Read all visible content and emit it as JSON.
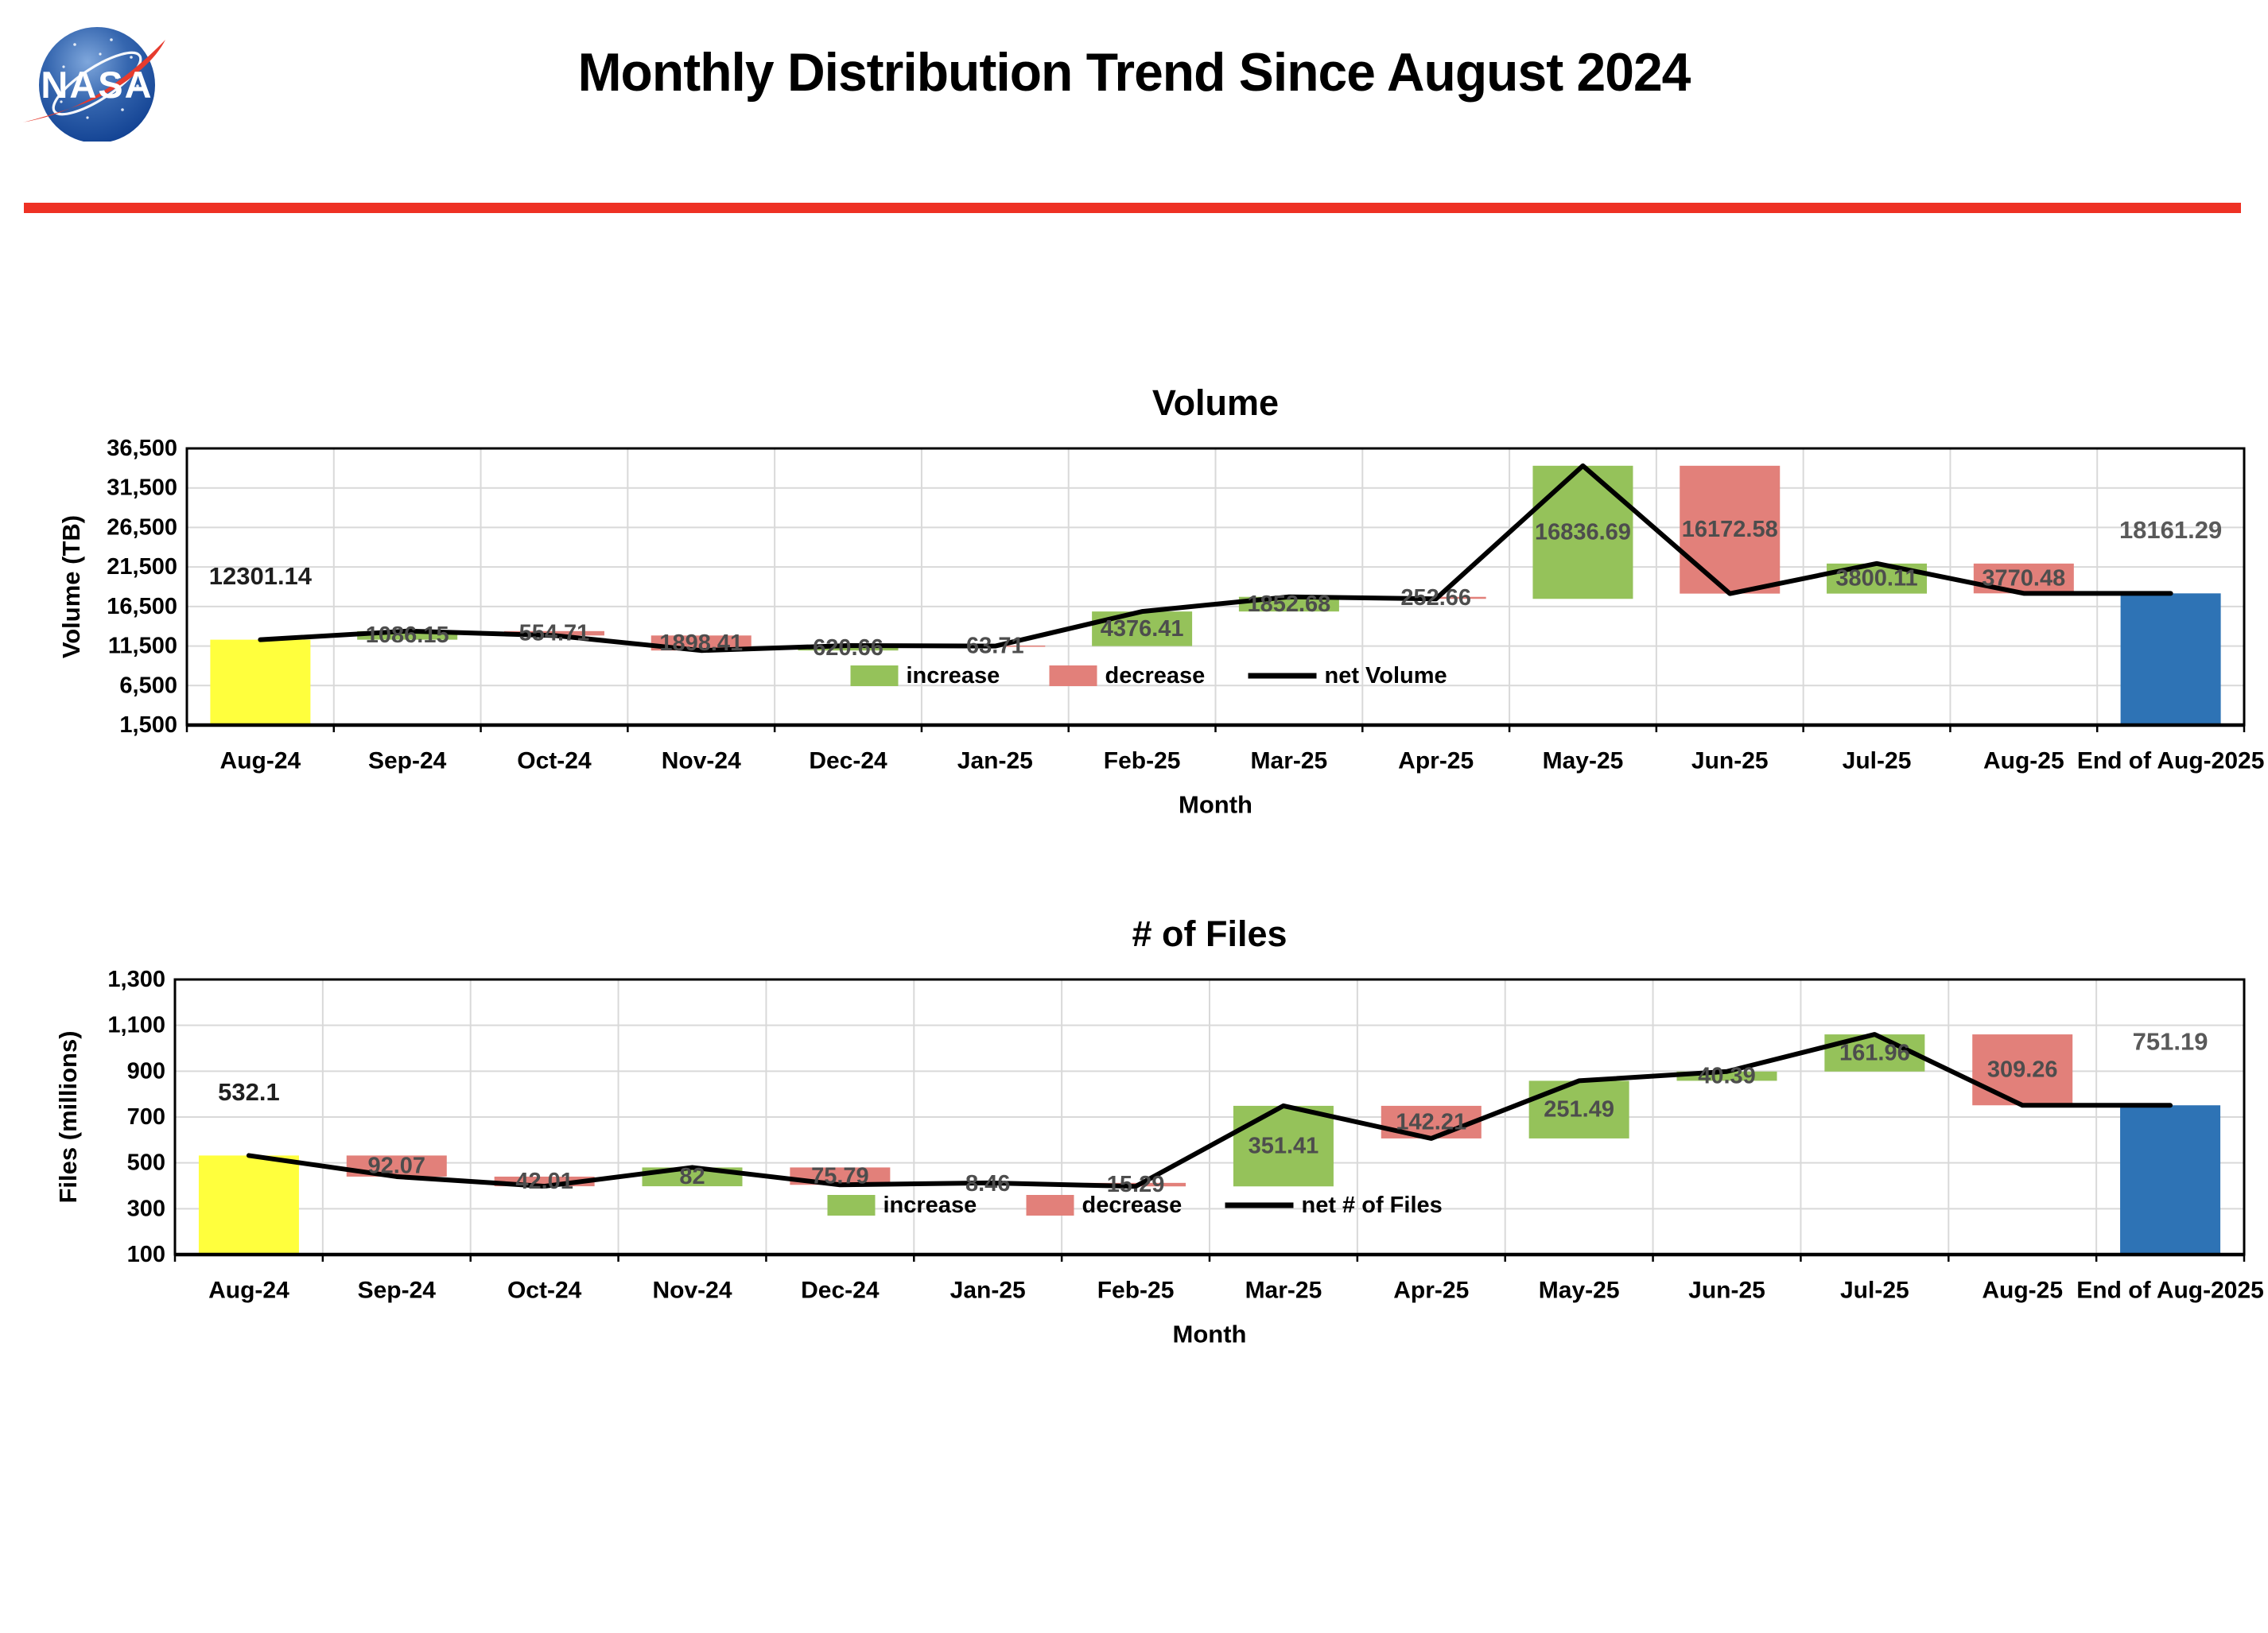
{
  "header": {
    "title": "Monthly Distribution Trend Since August 2024",
    "logo_text": "NASA",
    "divider_color": "#EE3124"
  },
  "palette": {
    "increase": "#95C25A",
    "decrease": "#E2807A",
    "start_bar": "#FFFF3D",
    "end_bar": "#2E73B5",
    "net_line": "#000000",
    "gridline": "#D9D9D9",
    "plot_border": "#000000",
    "change_label": "#4D4D4D",
    "start_label": "#1F1F1F",
    "end_label": "#595959"
  },
  "chart_data": [
    {
      "type": "waterfall-bar-line",
      "title": "Volume",
      "xlabel": "Month",
      "ylabel": "Volume (TB)",
      "ylim": [
        1500,
        36500
      ],
      "ytick_interval": 5000,
      "ytick_labels": [
        "1,500",
        "6,500",
        "11,500",
        "16,500",
        "21,500",
        "26,500",
        "31,500",
        "36,500"
      ],
      "grid": true,
      "legend_position": "inside-bottom-center",
      "categories": [
        "Aug-24",
        "Sep-24",
        "Oct-24",
        "Nov-24",
        "Dec-24",
        "Jan-25",
        "Feb-25",
        "Mar-25",
        "Apr-25",
        "May-25",
        "Jun-25",
        "Jul-25",
        "Aug-25",
        "End of Aug-2025"
      ],
      "legend": [
        {
          "label": "increase",
          "swatch": "increase"
        },
        {
          "label": "decrease",
          "swatch": "decrease"
        },
        {
          "label": "net Volume",
          "swatch": "line"
        }
      ],
      "bars": [
        {
          "category": "Aug-24",
          "role": "start",
          "value": 12301.14,
          "label": "12301.14"
        },
        {
          "category": "Sep-24",
          "role": "increase",
          "value": 1086.15,
          "label": "1086.15"
        },
        {
          "category": "Oct-24",
          "role": "decrease",
          "value": 554.71,
          "label": "554.71"
        },
        {
          "category": "Nov-24",
          "role": "decrease",
          "value": 1898.41,
          "label": "1898.41"
        },
        {
          "category": "Dec-24",
          "role": "increase",
          "value": 620.66,
          "label": "620.66"
        },
        {
          "category": "Jan-25",
          "role": "decrease",
          "value": 63.71,
          "label": "63.71"
        },
        {
          "category": "Feb-25",
          "role": "increase",
          "value": 4376.41,
          "label": "4376.41"
        },
        {
          "category": "Mar-25",
          "role": "increase",
          "value": 1852.68,
          "label": "1852.68"
        },
        {
          "category": "Apr-25",
          "role": "decrease",
          "value": 252.66,
          "label": "252.66"
        },
        {
          "category": "May-25",
          "role": "increase",
          "value": 16836.69,
          "label": "16836.69"
        },
        {
          "category": "Jun-25",
          "role": "decrease",
          "value": 16172.58,
          "label": "16172.58"
        },
        {
          "category": "Jul-25",
          "role": "increase",
          "value": 3800.11,
          "label": "3800.11"
        },
        {
          "category": "Aug-25",
          "role": "decrease",
          "value": 3770.48,
          "label": "3770.48"
        },
        {
          "category": "End of Aug-2025",
          "role": "end",
          "value": 18161.29,
          "label": "18161.29"
        }
      ],
      "net_series": {
        "name": "net Volume",
        "values": [
          12301.14,
          13387.29,
          12832.58,
          10934.17,
          11554.83,
          11491.12,
          15867.53,
          17720.21,
          17467.55,
          34304.24,
          18131.66,
          21931.77,
          18161.29,
          18161.29
        ]
      }
    },
    {
      "type": "waterfall-bar-line",
      "title": "# of Files",
      "xlabel": "Month",
      "ylabel": "Files (millions)",
      "ylim": [
        100,
        1300
      ],
      "ytick_interval": 200,
      "ytick_labels": [
        "100",
        "300",
        "500",
        "700",
        "900",
        "1,100",
        "1,300"
      ],
      "grid": true,
      "legend_position": "inside-bottom-center",
      "categories": [
        "Aug-24",
        "Sep-24",
        "Oct-24",
        "Nov-24",
        "Dec-24",
        "Jan-25",
        "Feb-25",
        "Mar-25",
        "Apr-25",
        "May-25",
        "Jun-25",
        "Jul-25",
        "Aug-25",
        "End of Aug-2025"
      ],
      "legend": [
        {
          "label": "increase",
          "swatch": "increase"
        },
        {
          "label": "decrease",
          "swatch": "decrease"
        },
        {
          "label": "net # of Files",
          "swatch": "line"
        }
      ],
      "bars": [
        {
          "category": "Aug-24",
          "role": "start",
          "value": 532.1,
          "label": "532.1"
        },
        {
          "category": "Sep-24",
          "role": "decrease",
          "value": 92.07,
          "label": "92.07"
        },
        {
          "category": "Oct-24",
          "role": "decrease",
          "value": 42.01,
          "label": "42.01"
        },
        {
          "category": "Nov-24",
          "role": "increase",
          "value": 82,
          "label": "82"
        },
        {
          "category": "Dec-24",
          "role": "decrease",
          "value": 75.79,
          "label": "75.79"
        },
        {
          "category": "Jan-25",
          "role": "increase",
          "value": 8.46,
          "label": "8.46"
        },
        {
          "category": "Feb-25",
          "role": "decrease",
          "value": 15.29,
          "label": "15.29"
        },
        {
          "category": "Mar-25",
          "role": "increase",
          "value": 351.41,
          "label": "351.41"
        },
        {
          "category": "Apr-25",
          "role": "decrease",
          "value": 142.21,
          "label": "142.21"
        },
        {
          "category": "May-25",
          "role": "increase",
          "value": 251.49,
          "label": "251.49"
        },
        {
          "category": "Jun-25",
          "role": "increase",
          "value": 40.39,
          "label": "40.39"
        },
        {
          "category": "Jul-25",
          "role": "increase",
          "value": 161.96,
          "label": "161.96"
        },
        {
          "category": "Aug-25",
          "role": "decrease",
          "value": 309.26,
          "label": "309.26"
        },
        {
          "category": "End of Aug-2025",
          "role": "end",
          "value": 751.19,
          "label": "751.19"
        }
      ],
      "net_series": {
        "name": "net # of Files",
        "values": [
          532.1,
          440.03,
          398.02,
          480.02,
          404.23,
          412.69,
          397.4,
          748.81,
          606.6,
          858.09,
          898.48,
          1060.44,
          751.18,
          751.19
        ]
      }
    }
  ]
}
